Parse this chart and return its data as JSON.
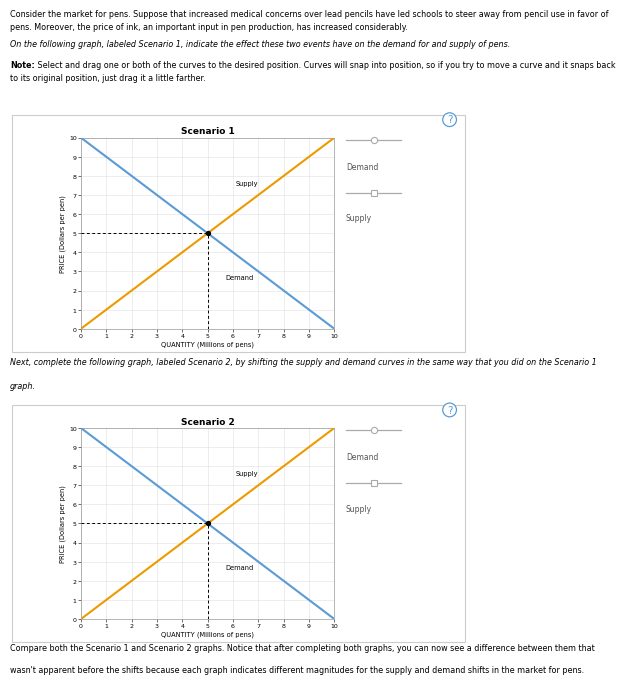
{
  "scenario1_title": "Scenario 1",
  "scenario2_title": "Scenario 2",
  "xlabel": "QUANTITY (Millions of pens)",
  "ylabel": "PRICE (Dollars per pen)",
  "xlim": [
    0,
    10
  ],
  "ylim": [
    0,
    10
  ],
  "xticks": [
    0,
    1,
    2,
    3,
    4,
    5,
    6,
    7,
    8,
    9,
    10
  ],
  "yticks": [
    0,
    1,
    2,
    3,
    4,
    5,
    6,
    7,
    8,
    9,
    10
  ],
  "demand_color": "#5b9bd5",
  "supply_color": "#ed9a00",
  "equilibrium_price": 5,
  "equilibrium_qty": 5,
  "bg_color": "#ffffff",
  "legend_circle_color": "#aaaaaa",
  "legend_square_color": "#aaaaaa",
  "legend_line_color": "#aaaaaa",
  "grid_color": "#e0e0e0",
  "text1_line1": "Consider the market for pens. Suppose that increased medical concerns over lead pencils have led schools to steer away from pencil use in favor of",
  "text1_line2": "pens. Moreover, the price of ink, an important input in pen production, has increased considerably.",
  "text1_line3": "",
  "text1_line4": "On the following graph, labeled Scenario 1, indicate the effect these two events have on the demand for and supply of pens.",
  "text1_line5": "",
  "text1_note_bold": "Note:",
  "text1_note_rest": " Select and drag one or both of the curves to the desired position. Curves will snap into position, so if you try to move a curve and it snaps back",
  "text1_line7": "to its original position, just drag it a little farther.",
  "text2_line1": "Next, complete the following graph, labeled Scenario 2, by shifting the supply and demand curves in the same way that you did on the Scenario 1",
  "text2_line2": "graph.",
  "text3_line1": "Compare both the Scenario 1 and Scenario 2 graphs. Notice that after completing both graphs, you can now see a difference between them that",
  "text3_line2": "wasn't apparent before the shifts because each graph indicates different magnitudes for the supply and demand shifts in the market for pens.",
  "supply_label": "Supply",
  "demand_label": "Demand",
  "legend_demand_label": "Demand",
  "legend_supply_label": "Supply"
}
